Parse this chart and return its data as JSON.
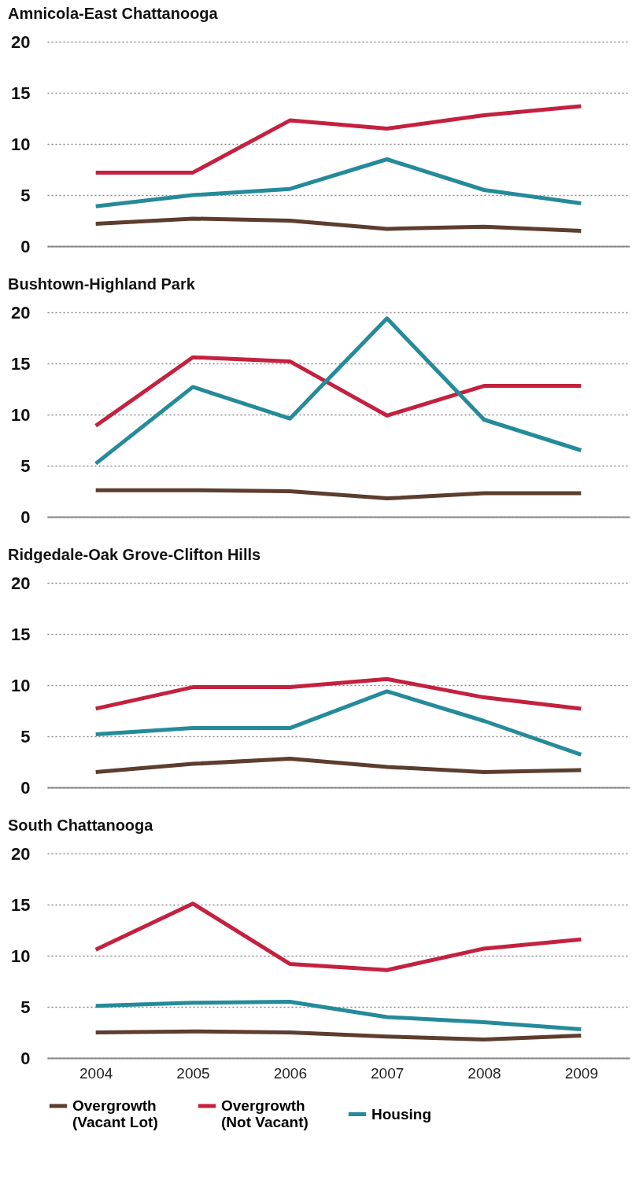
{
  "chart_data": [
    {
      "type": "line",
      "title": "Amnicola-East Chattanooga",
      "categories": [
        "2004",
        "2005",
        "2006",
        "2007",
        "2008",
        "2009"
      ],
      "ylim": [
        0,
        20
      ],
      "yticks": [
        0,
        5,
        10,
        15,
        20
      ],
      "grid": "y",
      "legend": false,
      "tick_labels": "y",
      "line_style": "solid",
      "marker": "none",
      "series": [
        {
          "color": "#5c3d2e",
          "values": [
            2.2,
            2.7,
            2.5,
            1.7,
            1.9,
            1.5
          ]
        },
        {
          "color": "#c4213f",
          "values": [
            7.2,
            7.2,
            12.3,
            11.5,
            12.8,
            13.7
          ]
        },
        {
          "color": "#258a9a",
          "values": [
            3.9,
            5.0,
            5.6,
            8.5,
            5.5,
            4.2
          ]
        }
      ]
    },
    {
      "type": "line",
      "title": "Bushtown-Highland Park",
      "categories": [
        "2004",
        "2005",
        "2006",
        "2007",
        "2008",
        "2009"
      ],
      "ylim": [
        0,
        20
      ],
      "yticks": [
        0,
        5,
        10,
        15,
        20
      ],
      "grid": "y",
      "legend": false,
      "tick_labels": "y",
      "line_style": "solid",
      "marker": "none",
      "series": [
        {
          "color": "#5c3d2e",
          "values": [
            2.6,
            2.6,
            2.5,
            1.8,
            2.3,
            2.3
          ]
        },
        {
          "color": "#c4213f",
          "values": [
            8.9,
            15.6,
            15.2,
            9.9,
            12.8,
            12.8
          ]
        },
        {
          "color": "#258a9a",
          "values": [
            5.2,
            12.7,
            9.6,
            19.4,
            9.5,
            6.5
          ]
        }
      ]
    },
    {
      "type": "line",
      "title": "Ridgedale-Oak Grove-Clifton Hills",
      "categories": [
        "2004",
        "2005",
        "2006",
        "2007",
        "2008",
        "2009"
      ],
      "ylim": [
        0,
        20
      ],
      "yticks": [
        0,
        5,
        10,
        15,
        20
      ],
      "grid": "y",
      "legend": false,
      "tick_labels": "y",
      "line_style": "solid",
      "marker": "none",
      "series": [
        {
          "color": "#5c3d2e",
          "values": [
            1.5,
            2.3,
            2.8,
            2.0,
            1.5,
            1.7
          ]
        },
        {
          "color": "#c4213f",
          "values": [
            7.7,
            9.8,
            9.8,
            10.6,
            8.8,
            7.7
          ]
        },
        {
          "color": "#258a9a",
          "values": [
            5.2,
            5.8,
            5.8,
            9.4,
            6.5,
            3.2
          ]
        }
      ]
    },
    {
      "type": "line",
      "title": "South Chattanooga",
      "categories": [
        "2004",
        "2005",
        "2006",
        "2007",
        "2008",
        "2009"
      ],
      "ylim": [
        0,
        20
      ],
      "yticks": [
        0,
        5,
        10,
        15,
        20
      ],
      "grid": "y",
      "legend": "bottom",
      "line_style": "solid",
      "marker": "none",
      "series": [
        {
          "name": "Overgrowth (Vacant Lot)",
          "color": "#5c3d2e",
          "values": [
            2.5,
            2.6,
            2.5,
            2.1,
            1.8,
            2.2
          ]
        },
        {
          "name": "Overgrowth (Not Vacant)",
          "color": "#c4213f",
          "values": [
            10.6,
            15.1,
            9.2,
            8.6,
            10.7,
            11.6
          ]
        },
        {
          "name": "Housing",
          "color": "#258a9a",
          "values": [
            5.1,
            5.4,
            5.5,
            4.0,
            3.5,
            2.8
          ]
        }
      ]
    }
  ]
}
